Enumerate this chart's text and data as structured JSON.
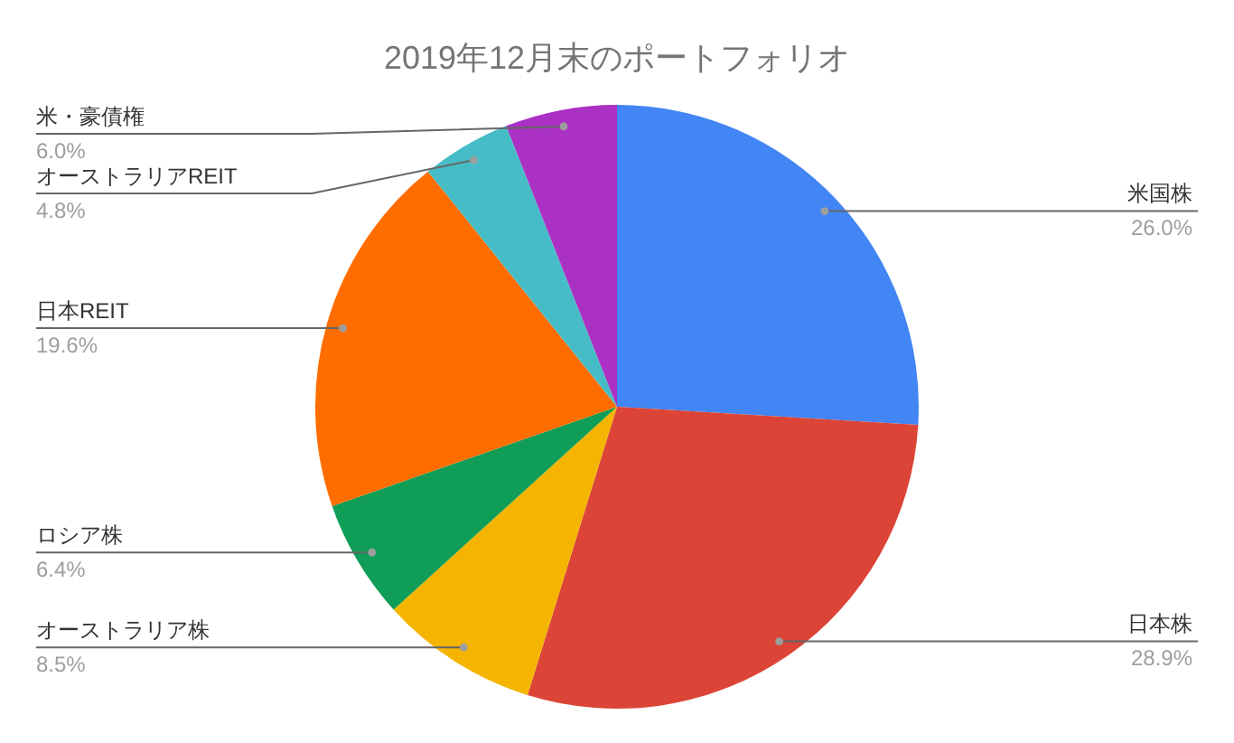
{
  "chart_data": {
    "type": "pie",
    "title": "2019年12月末のポートフォリオ",
    "categories": [
      "米国株",
      "日本株",
      "オーストラリア株",
      "ロシア株",
      "日本REIT",
      "オーストラリアREIT",
      "米・豪債権"
    ],
    "values": [
      26.0,
      28.9,
      8.5,
      6.4,
      19.6,
      4.8,
      6.0
    ],
    "value_labels": [
      "26.0%",
      "28.9%",
      "8.5%",
      "6.4%",
      "19.6%",
      "4.8%",
      "6.0%"
    ],
    "colors": [
      "#4285f4",
      "#db4437",
      "#f4b400",
      "#0f9d58",
      "#ff6d00",
      "#46bdc6",
      "#ab30c4"
    ],
    "legend": false
  }
}
